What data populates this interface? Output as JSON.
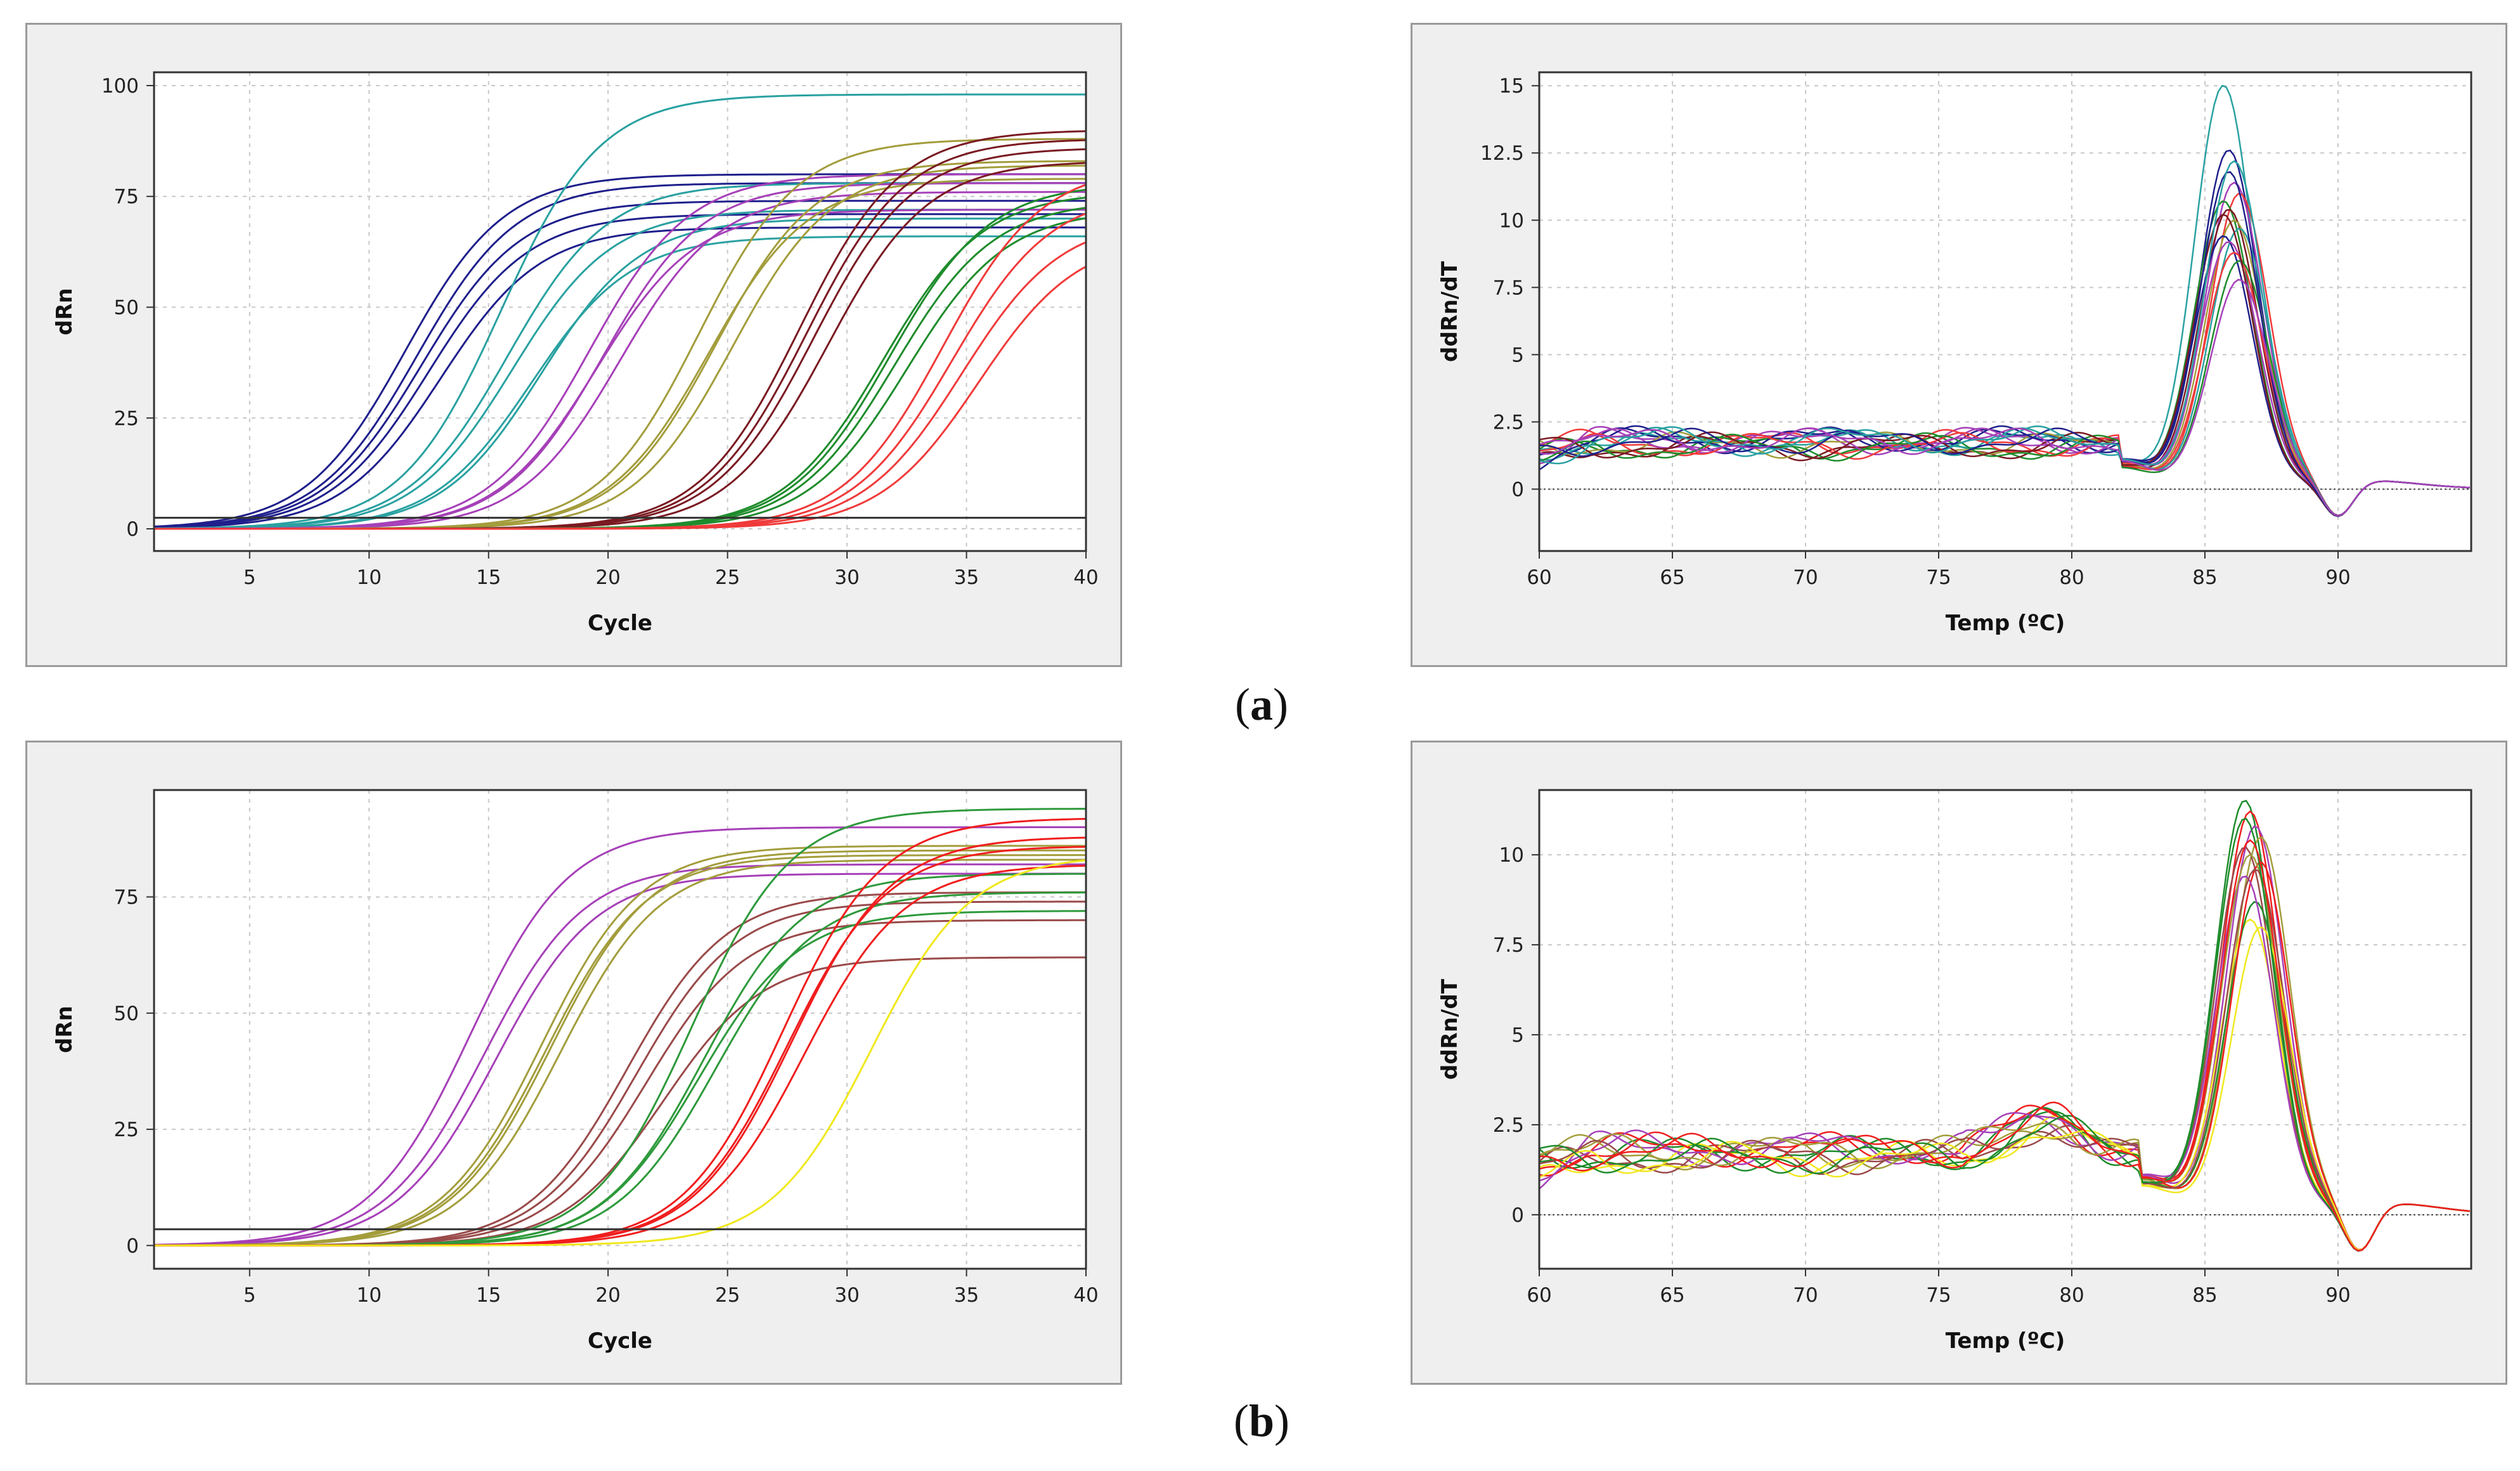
{
  "captions": [
    "a",
    "b"
  ],
  "chart_data": [
    {
      "id": "a-amp",
      "type": "line",
      "xlabel": "Cycle",
      "ylabel": "dRn",
      "xlim": [
        1,
        40
      ],
      "ylim": [
        -5,
        103
      ],
      "xticks": [
        5,
        10,
        15,
        20,
        25,
        30,
        35,
        40
      ],
      "yticks": [
        0,
        25,
        50,
        75,
        100
      ],
      "grid": true,
      "threshold": 2.5,
      "series": [
        {
          "color": "#1f1f8c",
          "curves": [
            [
              11.5,
              80
            ],
            [
              12.0,
              78
            ],
            [
              12.5,
              71
            ],
            [
              13.0,
              68
            ],
            [
              12.2,
              74
            ]
          ]
        },
        {
          "color": "#2aa1a1",
          "curves": [
            [
              15.5,
              98
            ],
            [
              16.0,
              72
            ],
            [
              16.8,
              66
            ],
            [
              15.8,
              78
            ],
            [
              17.2,
              70
            ]
          ]
        },
        {
          "color": "#a640b8",
          "curves": [
            [
              19.2,
              80
            ],
            [
              19.8,
              78
            ],
            [
              20.5,
              76
            ],
            [
              19.5,
              72
            ]
          ]
        },
        {
          "color": "#a39d3c",
          "curves": [
            [
              23.8,
              88
            ],
            [
              24.5,
              83
            ],
            [
              25.2,
              82
            ],
            [
              24.2,
              79
            ]
          ]
        },
        {
          "color": "#7a1a22",
          "curves": [
            [
              28.0,
              90
            ],
            [
              28.6,
              86
            ],
            [
              29.2,
              83
            ],
            [
              28.3,
              88
            ]
          ]
        },
        {
          "color": "#1e8c2c",
          "curves": [
            [
              31.5,
              76
            ],
            [
              32.0,
              74
            ],
            [
              32.5,
              72
            ],
            [
              31.8,
              78
            ]
          ]
        },
        {
          "color": "#f03a3a",
          "curves": [
            [
              34.0,
              82
            ],
            [
              34.8,
              70
            ],
            [
              35.5,
              66
            ],
            [
              34.4,
              76
            ]
          ]
        }
      ]
    },
    {
      "id": "a-melt",
      "type": "line",
      "xlabel": "Temp  (ºC)",
      "ylabel": "ddRn/dT",
      "xlim": [
        60,
        95
      ],
      "ylim": [
        -2.3,
        15.5
      ],
      "xticks": [
        60,
        65,
        70,
        75,
        80,
        85,
        90
      ],
      "yticks": [
        0,
        2.5,
        5,
        7.5,
        10,
        12.5,
        15
      ],
      "ytick_labels": [
        "0",
        "2.5",
        "5",
        "7.5",
        "10",
        "12.5",
        "15"
      ],
      "grid": true,
      "baseline": 0,
      "peak_temp": 86.0,
      "colors": [
        "#2aa1a1",
        "#1f1f8c",
        "#a640b8",
        "#f03a3a",
        "#1e8c2c",
        "#7a1a22",
        "#a39d3c",
        "#2aa1a1",
        "#1f1f8c",
        "#a640b8",
        "#f03a3a",
        "#1e8c2c",
        "#7a1a22",
        "#1f1f8c",
        "#2aa1a1",
        "#a640b8"
      ],
      "peak_heights": [
        14.8,
        12.4,
        11.2,
        10.8,
        10.5,
        10.2,
        9.8,
        9.5,
        9.2,
        9.0,
        8.6,
        8.3,
        10.0,
        11.6,
        12.0,
        7.6
      ]
    },
    {
      "id": "b-amp",
      "type": "line",
      "xlabel": "Cycle",
      "ylabel": "dRn",
      "xlim": [
        1,
        40
      ],
      "ylim": [
        -5,
        98
      ],
      "xticks": [
        5,
        10,
        15,
        20,
        25,
        30,
        35,
        40
      ],
      "yticks": [
        0,
        25,
        50,
        75
      ],
      "grid": true,
      "threshold": 3.5,
      "series": [
        {
          "color": "#a640b8",
          "curves": [
            [
              14.2,
              90
            ],
            [
              14.8,
              82
            ],
            [
              15.3,
              80
            ]
          ]
        },
        {
          "color": "#a39d3c",
          "curves": [
            [
              17.2,
              86
            ],
            [
              17.6,
              85
            ],
            [
              18.0,
              83
            ],
            [
              17.4,
              84
            ]
          ]
        },
        {
          "color": "#9a4a4a",
          "curves": [
            [
              20.8,
              76
            ],
            [
              21.6,
              70
            ],
            [
              22.3,
              62
            ],
            [
              21.2,
              74
            ]
          ]
        },
        {
          "color": "#2e9a3c",
          "curves": [
            [
              23.5,
              94
            ],
            [
              24.0,
              80
            ],
            [
              24.5,
              76
            ],
            [
              23.8,
              72
            ]
          ]
        },
        {
          "color": "#f01e1e",
          "curves": [
            [
              27.3,
              92
            ],
            [
              27.7,
              88
            ],
            [
              28.2,
              82
            ],
            [
              27.5,
              86
            ]
          ]
        },
        {
          "color": "#f0e81e",
          "curves": [
            [
              31.0,
              84
            ]
          ]
        }
      ]
    },
    {
      "id": "b-melt",
      "type": "line",
      "xlabel": "Temp  (ºC)",
      "ylabel": "ddRn/dT",
      "xlim": [
        60,
        95
      ],
      "ylim": [
        -1.5,
        11.8
      ],
      "xticks": [
        60,
        65,
        70,
        75,
        80,
        85,
        90
      ],
      "yticks": [
        0,
        2.5,
        5,
        7.5,
        10
      ],
      "ytick_labels": [
        "0",
        "2.5",
        "5",
        "7.5",
        "10"
      ],
      "grid": true,
      "baseline": 0,
      "peak_temp": 86.8,
      "colors": [
        "#1e8c2c",
        "#f01e1e",
        "#a640b8",
        "#a39d3c",
        "#9a4a4a",
        "#f0e81e",
        "#1e8c2c",
        "#f01e1e",
        "#a640b8",
        "#a39d3c",
        "#9a4a4a",
        "#f0e81e",
        "#1e8c2c",
        "#f01e1e"
      ],
      "peak_heights": [
        11.3,
        11.0,
        10.6,
        10.3,
        10.0,
        8.0,
        8.5,
        9.6,
        9.2,
        9.8,
        9.4,
        7.8,
        10.8,
        10.2
      ]
    }
  ]
}
